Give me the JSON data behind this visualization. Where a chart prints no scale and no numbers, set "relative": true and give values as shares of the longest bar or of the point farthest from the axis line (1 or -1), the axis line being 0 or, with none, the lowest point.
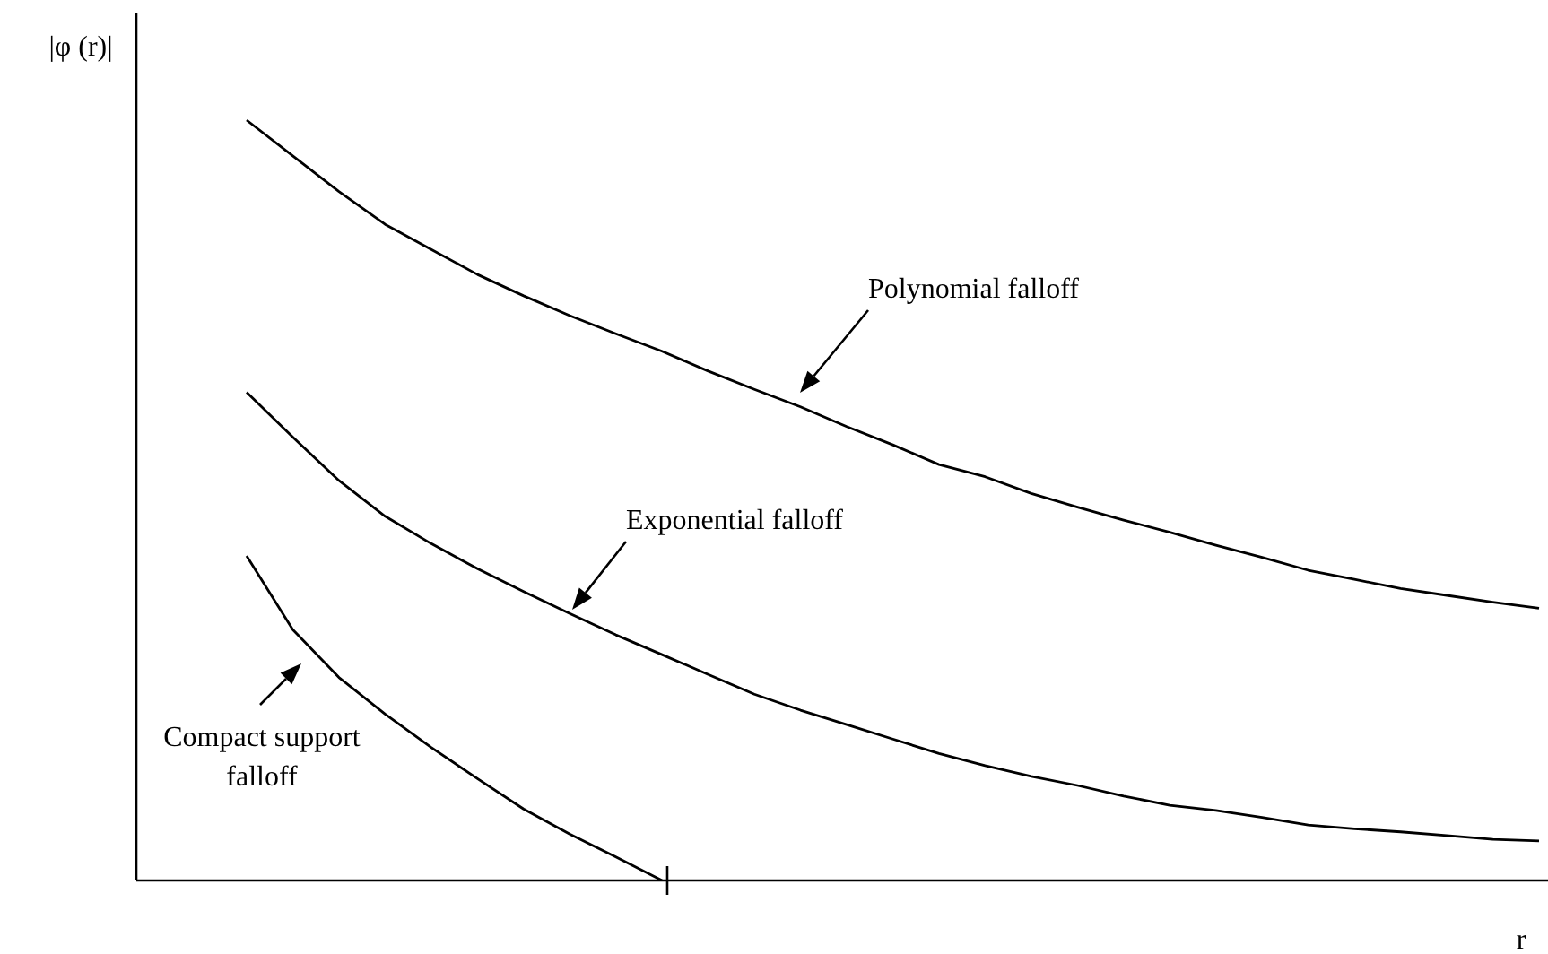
{
  "chart_data": {
    "type": "line",
    "relative": true,
    "xlabel": "r",
    "ylabel": "|φ (r)|",
    "marker": "none",
    "line_style": "solid",
    "annotations": [
      "Polynomial falloff",
      "Exponential falloff",
      "Compact support falloff"
    ],
    "categories": [
      null,
      null,
      null,
      null,
      null,
      null,
      null,
      null,
      null,
      null,
      null,
      null,
      null,
      null,
      null,
      null,
      null,
      null,
      null,
      null,
      null,
      null,
      null,
      null,
      null,
      null,
      null,
      null,
      null
    ],
    "series": [
      {
        "color": "#000000",
        "values": [
          1.0,
          0.953,
          0.906,
          0.863,
          0.83,
          0.797,
          0.769,
          0.743,
          0.719,
          0.696,
          0.67,
          0.646,
          0.623,
          0.597,
          0.573,
          0.547,
          0.531,
          0.509,
          0.491,
          0.474,
          0.458,
          0.441,
          0.425,
          0.408,
          0.396,
          0.384,
          0.375,
          0.366,
          0.358
        ]
      },
      {
        "color": "#000000",
        "values": [
          0.642,
          0.583,
          0.526,
          0.479,
          0.443,
          0.41,
          0.38,
          0.351,
          0.323,
          0.297,
          0.271,
          0.245,
          0.224,
          0.205,
          0.186,
          0.167,
          0.151,
          0.137,
          0.125,
          0.111,
          0.099,
          0.092,
          0.083,
          0.073,
          0.068,
          0.064,
          0.059,
          0.054,
          0.052
        ]
      },
      {
        "color": "#000000",
        "values": [
          0.427,
          0.33,
          0.267,
          0.219,
          0.175,
          0.134,
          0.094,
          0.061,
          0.031,
          0,
          null,
          null,
          null,
          null,
          null,
          null,
          null,
          null,
          null,
          null,
          null,
          null,
          null,
          null,
          null,
          null,
          null,
          null,
          null
        ]
      }
    ]
  }
}
